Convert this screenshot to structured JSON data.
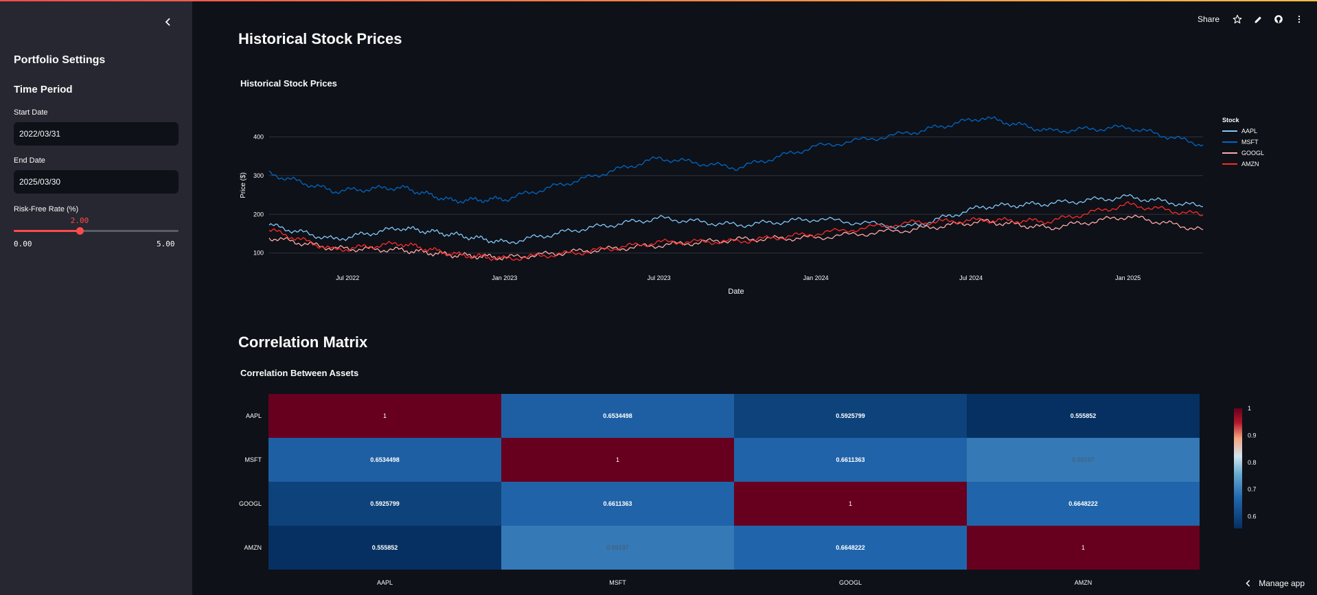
{
  "sidebar": {
    "title": "Portfolio Settings",
    "section": "Time Period",
    "start_label": "Start Date",
    "start_value": "2022/03/31",
    "end_label": "End Date",
    "end_value": "2025/03/30",
    "rate_label": "Risk-Free Rate (%)",
    "rate_value": "2.00",
    "rate_min": "0.00",
    "rate_max": "5.00",
    "rate_fraction": 0.4
  },
  "header": {
    "share_label": "Share",
    "icons": [
      "star-icon",
      "pencil-icon",
      "github-icon",
      "more-vertical-icon"
    ]
  },
  "section1": {
    "heading": "Historical Stock Prices",
    "chart_title": "Historical Stock Prices"
  },
  "section2": {
    "heading": "Correlation Matrix",
    "chart_title": "Correlation Between Assets"
  },
  "manage_label": "Manage app",
  "chart_data": [
    {
      "type": "line",
      "title": "Historical Stock Prices",
      "xlabel": "Date",
      "ylabel": "Price ($)",
      "yticks": [
        100,
        200,
        300,
        400
      ],
      "xticks": [
        "Jul 2022",
        "Jan 2023",
        "Jul 2023",
        "Jan 2024",
        "Jul 2024",
        "Jan 2025"
      ],
      "xrange": [
        "2022-03-31",
        "2025-03-30"
      ],
      "ylim": [
        80,
        470
      ],
      "legend_title": "Stock",
      "series": [
        {
          "name": "AAPL",
          "color": "#83c9ff",
          "x": [
            "2022-03-31",
            "2022-06-15",
            "2022-09-01",
            "2022-11-01",
            "2023-01-03",
            "2023-04-01",
            "2023-07-01",
            "2023-10-01",
            "2024-01-01",
            "2024-04-20",
            "2024-07-15",
            "2024-10-01",
            "2025-01-01",
            "2025-03-30"
          ],
          "y": [
            172,
            135,
            165,
            148,
            127,
            162,
            190,
            172,
            188,
            167,
            220,
            228,
            245,
            220
          ]
        },
        {
          "name": "MSFT",
          "color": "#0068c9",
          "x": [
            "2022-03-31",
            "2022-06-15",
            "2022-09-01",
            "2022-11-01",
            "2023-01-03",
            "2023-04-01",
            "2023-07-01",
            "2023-10-01",
            "2024-01-01",
            "2024-04-20",
            "2024-07-15",
            "2024-10-01",
            "2025-01-01",
            "2025-03-30"
          ],
          "y": [
            305,
            260,
            270,
            235,
            240,
            290,
            345,
            320,
            375,
            410,
            450,
            415,
            425,
            380
          ]
        },
        {
          "name": "GOOGL",
          "color": "#ffabab",
          "x": [
            "2022-03-31",
            "2022-06-15",
            "2022-09-01",
            "2022-11-01",
            "2023-01-03",
            "2023-04-01",
            "2023-07-01",
            "2023-10-01",
            "2024-01-01",
            "2024-04-20",
            "2024-07-15",
            "2024-10-01",
            "2025-01-01",
            "2025-03-30"
          ],
          "y": [
            140,
            112,
            108,
            95,
            88,
            105,
            120,
            135,
            140,
            160,
            182,
            165,
            195,
            160
          ]
        },
        {
          "name": "AMZN",
          "color": "#ff2b2b",
          "x": [
            "2022-03-31",
            "2022-06-15",
            "2022-09-01",
            "2022-11-01",
            "2023-01-03",
            "2023-04-01",
            "2023-07-01",
            "2023-10-01",
            "2024-01-01",
            "2024-04-20",
            "2024-07-15",
            "2024-10-01",
            "2025-01-01",
            "2025-03-30"
          ],
          "y": [
            160,
            108,
            125,
            97,
            85,
            102,
            128,
            130,
            150,
            178,
            185,
            182,
            225,
            198
          ]
        }
      ]
    },
    {
      "type": "heatmap",
      "title": "Correlation Between Assets",
      "x_labels": [
        "AAPL",
        "MSFT",
        "GOOGL",
        "AMZN"
      ],
      "y_labels": [
        "AAPL",
        "MSFT",
        "GOOGL",
        "AMZN"
      ],
      "values": [
        [
          1,
          0.6534498,
          0.5925799,
          0.555852
        ],
        [
          0.6534498,
          1,
          0.6611363,
          0.69197
        ],
        [
          0.5925799,
          0.6611363,
          1,
          0.6648222
        ],
        [
          0.555852,
          0.69197,
          0.6648222,
          1
        ]
      ],
      "value_labels": [
        [
          "1",
          "0.6534498",
          "0.5925799",
          "0.555852"
        ],
        [
          "0.6534498",
          "1",
          "0.6611363",
          "0.69197"
        ],
        [
          "0.5925799",
          "0.6611363",
          "1",
          "0.6648222"
        ],
        [
          "0.555852",
          "0.69197",
          "0.6648222",
          "1"
        ]
      ],
      "colorbar_ticks": [
        "1",
        "0.9",
        "0.8",
        "0.7",
        "0.6"
      ],
      "zlim": [
        0.555852,
        1
      ],
      "colorscale": "RdBu (reversed)"
    }
  ]
}
